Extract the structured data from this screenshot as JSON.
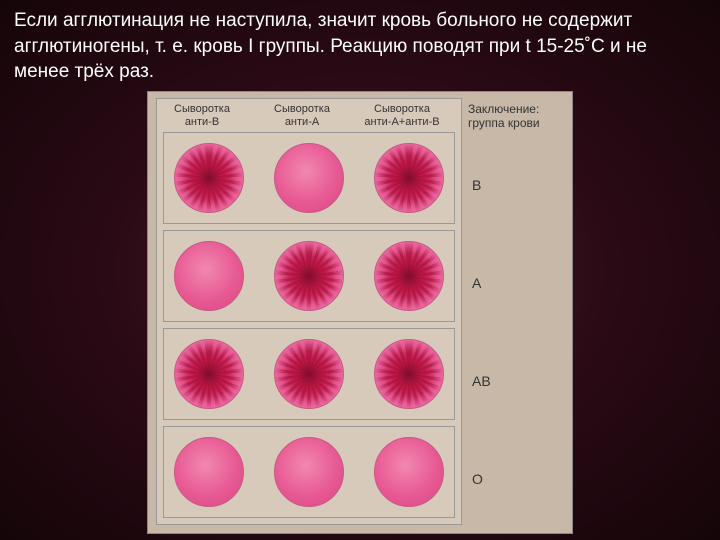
{
  "paragraph": "Если агглютинация не наступила, значит кровь больного не содержит агглютиногены, т. е. кровь I группы. Реакцию поводят при t 15-25˚С и не менее трёх раз.",
  "headers": {
    "col1_line1": "Сыворотка",
    "col1_line2": "анти-B",
    "col2_line1": "Сыворотка",
    "col2_line2": "анти-A",
    "col3_line1": "Сыворотка",
    "col3_line2": "анти-A+анти-B"
  },
  "side": {
    "title_line1": "Заключение:",
    "title_line2": "группа крови",
    "labels": [
      "B",
      "A",
      "AB",
      "O"
    ]
  },
  "rows": [
    {
      "cells": [
        "agglut",
        "smooth",
        "agglut"
      ]
    },
    {
      "cells": [
        "smooth",
        "agglut",
        "agglut"
      ]
    },
    {
      "cells": [
        "agglut",
        "agglut",
        "agglut"
      ]
    },
    {
      "cells": [
        "smooth",
        "smooth",
        "smooth"
      ]
    }
  ],
  "colors": {
    "bg_outer": "#150508",
    "bg_mid": "#2a0a15",
    "bg_inner": "#4a1a2a",
    "panel": "#d8cabb",
    "frame": "#c8b8a8",
    "smooth_center": "#f288b0",
    "smooth_edge": "#d84885",
    "agglut_center": "#c81a52",
    "agglut_edge": "#f0a0c0",
    "text": "#ffffff",
    "label_text": "#333333"
  }
}
